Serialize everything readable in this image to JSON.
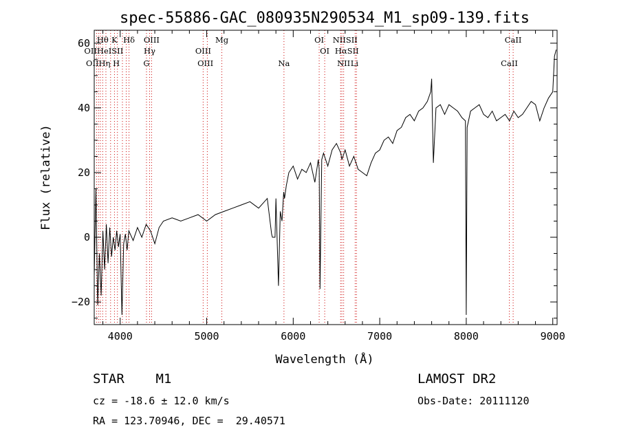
{
  "chart_data": {
    "type": "line",
    "title": "spec-55886-GAC_080935N290534_M1_sp09-139.fits",
    "xlabel": "Wavelength (Å)",
    "ylabel": "Flux (relative)",
    "xlim": [
      3700,
      9050
    ],
    "ylim": [
      -27,
      64
    ],
    "xticks": [
      4000,
      5000,
      6000,
      7000,
      8000,
      9000
    ],
    "yticks": [
      -20,
      0,
      20,
      40,
      60
    ],
    "grid": false,
    "line_color": "#000000",
    "marker_color": "#cc0000",
    "series": [
      {
        "x": [
          3700,
          3720,
          3740,
          3760,
          3780,
          3800,
          3820,
          3840,
          3860,
          3880,
          3900,
          3920,
          3940,
          3960,
          3980,
          4000,
          4020,
          4040,
          4060,
          4080,
          4100,
          4150,
          4200,
          4250,
          4300,
          4350,
          4400,
          4450,
          4500,
          4600,
          4700,
          4800,
          4900,
          5000,
          5100,
          5200,
          5300,
          5400,
          5500,
          5600,
          5700,
          5750,
          5760,
          5790,
          5800,
          5830,
          5850,
          5870,
          5890,
          5900,
          5920,
          5950,
          6000,
          6050,
          6100,
          6150,
          6200,
          6250,
          6290,
          6300,
          6310,
          6330,
          6350,
          6400,
          6450,
          6500,
          6550,
          6563,
          6600,
          6650,
          6700,
          6750,
          6800,
          6850,
          6900,
          6950,
          7000,
          7050,
          7100,
          7150,
          7200,
          7250,
          7300,
          7350,
          7400,
          7450,
          7500,
          7550,
          7590,
          7600,
          7620,
          7650,
          7700,
          7750,
          7800,
          7850,
          7900,
          7950,
          7990,
          8000,
          8010,
          8050,
          8100,
          8150,
          8200,
          8250,
          8300,
          8350,
          8400,
          8450,
          8500,
          8550,
          8600,
          8650,
          8700,
          8750,
          8800,
          8850,
          8900,
          8950,
          9000,
          9020,
          9040
        ],
        "y": [
          -12,
          15,
          -21,
          -5,
          -18,
          2,
          -10,
          4,
          -8,
          3,
          -6,
          0,
          -4,
          2,
          -3,
          1,
          -24,
          -2,
          1,
          -4,
          2,
          -1,
          3,
          0,
          4,
          2,
          -2,
          3,
          5,
          6,
          5,
          6,
          7,
          5,
          7,
          8,
          9,
          10,
          11,
          9,
          12,
          1,
          0,
          0,
          12,
          -15,
          8,
          5,
          14,
          12,
          16,
          20,
          22,
          18,
          21,
          20,
          23,
          17,
          24,
          21,
          -16,
          24,
          26,
          22,
          27,
          29,
          26,
          24,
          27,
          22,
          25,
          21,
          20,
          19,
          23,
          26,
          27,
          30,
          31,
          29,
          33,
          34,
          37,
          38,
          36,
          39,
          40,
          42,
          45,
          49,
          23,
          40,
          41,
          38,
          41,
          40,
          39,
          37,
          36,
          -24,
          34,
          39,
          40,
          41,
          38,
          37,
          39,
          36,
          37,
          38,
          36,
          39,
          37,
          38,
          40,
          42,
          41,
          36,
          40,
          43,
          45,
          56,
          58
        ]
      }
    ],
    "lines": {
      "row1": [
        {
          "label": "Hθ",
          "x": 3798
        },
        {
          "label": "K",
          "x": 3934
        },
        {
          "label": "Hδ",
          "x": 4102
        },
        {
          "label": "OIII",
          "x": 4363
        },
        {
          "label": "Mg",
          "x": 5175
        },
        {
          "label": "OI",
          "x": 6300
        },
        {
          "label": "NIISII",
          "x": 6600
        },
        {
          "label": "CaII",
          "x": 8542
        }
      ],
      "row2": [
        {
          "label": "OIIHeISII",
          "x": 3810
        },
        {
          "label": "Hγ",
          "x": 4340
        },
        {
          "label": "OIII",
          "x": 4959
        },
        {
          "label": "OI",
          "x": 6364
        },
        {
          "label": "HαSII",
          "x": 6620
        }
      ],
      "row3": [
        {
          "label": "OIIHη H",
          "x": 3800
        },
        {
          "label": "G",
          "x": 4304
        },
        {
          "label": "OIII",
          "x": 4985
        },
        {
          "label": "Na",
          "x": 5893
        },
        {
          "label": "NII",
          "x": 6583
        },
        {
          "label": "Li",
          "x": 6708
        },
        {
          "label": "CaII",
          "x": 8498
        }
      ],
      "positions": [
        3727,
        3750,
        3771,
        3798,
        3835,
        3889,
        3934,
        3968,
        4026,
        4070,
        4102,
        4304,
        4340,
        4363,
        4959,
        5007,
        5175,
        5893,
        6300,
        6364,
        6548,
        6563,
        6583,
        6716,
        6731,
        8498,
        8542
      ]
    }
  },
  "footer": {
    "object": "STAR    M1",
    "survey": "LAMOST DR2",
    "cz": "cz = -18.6 ± 12.0 km/s",
    "obs_date": "Obs-Date: 20111120",
    "coords": "RA = 123.70946, DEC =  29.40571"
  }
}
